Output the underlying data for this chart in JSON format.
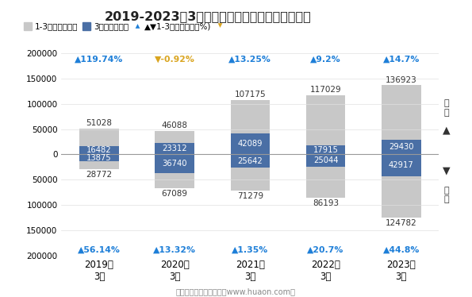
{
  "title": "2019-2023年3月长沙黄花综合保税区进、出口额",
  "years": [
    "2019年\n3月",
    "2020年\n3月",
    "2021年\n3月",
    "2022年\n3月",
    "2023年\n3月"
  ],
  "export_total": [
    51028,
    46088,
    107175,
    117029,
    136923
  ],
  "export_march": [
    16482,
    23312,
    42089,
    17915,
    29430
  ],
  "import_total": [
    28772,
    67089,
    71279,
    86193,
    124782
  ],
  "import_march": [
    13875,
    36740,
    25642,
    25044,
    42917
  ],
  "export_growth": [
    "▲119.74%",
    "▼-0.92%",
    "▲13.25%",
    "▲9.2%",
    "▲14.7%"
  ],
  "import_growth": [
    "▲56.14%",
    "▲13.32%",
    "▲1.35%",
    "▲20.7%",
    "▲44.8%"
  ],
  "export_growth_colors": [
    "#1E7FD8",
    "#DAA520",
    "#1E7FD8",
    "#1E7FD8",
    "#1E7FD8"
  ],
  "import_growth_colors": [
    "#1E7FD8",
    "#1E7FD8",
    "#1E7FD8",
    "#1E7FD8",
    "#1E7FD8"
  ],
  "color_bar_total": "#C8C8C8",
  "color_bar_march": "#4A6FA5",
  "background_color": "#FFFFFF",
  "ylim": 200000,
  "legend_items": [
    "1-3月（万美元）",
    "3月（万美元）",
    "▲▼1-3月同比增速（%)"
  ],
  "footer": "制图：华经产业研究院（www.huaon.com）"
}
